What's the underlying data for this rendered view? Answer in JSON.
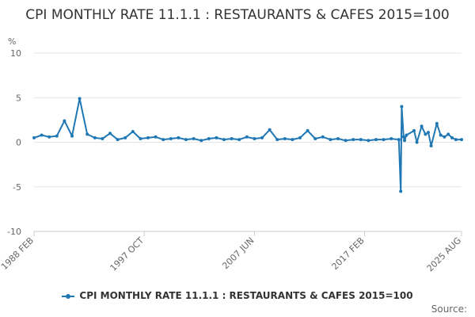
{
  "chart_data": {
    "type": "line",
    "title": "CPI MONTHLY RATE 11.1.1 : RESTAURANTS & CAFES 2015=100",
    "ylabel": "%",
    "ylim": [
      -10,
      10
    ],
    "yticks": [
      10,
      5,
      0,
      -5,
      -10
    ],
    "xlabels": [
      "1988 FEB",
      "1997 OCT",
      "2007 JUN",
      "2017 FEB",
      "2025 AUG"
    ],
    "grid": true,
    "legend_position": "bottom",
    "series_color": "#1f77b4",
    "series": [
      {
        "name": "CPI MONTHLY RATE 11.1.1 : RESTAURANTS & CAFES 2015=100",
        "x": [
          "1988 FEB",
          "1988 OCT",
          "1989 JUN",
          "1990 FEB",
          "1990 OCT",
          "1991 JUN",
          "1992 FEB",
          "1992 OCT",
          "1993 JUN",
          "1994 FEB",
          "1994 OCT",
          "1995 JUN",
          "1996 FEB",
          "1996 OCT",
          "1997 JUN",
          "1998 FEB",
          "1998 OCT",
          "1999 JUN",
          "2000 FEB",
          "2000 OCT",
          "2001 JUN",
          "2002 FEB",
          "2002 OCT",
          "2003 JUN",
          "2004 FEB",
          "2004 OCT",
          "2005 JUN",
          "2006 FEB",
          "2006 OCT",
          "2007 JUN",
          "2008 FEB",
          "2008 OCT",
          "2009 JUN",
          "2010 FEB",
          "2010 OCT",
          "2011 JUN",
          "2012 FEB",
          "2012 OCT",
          "2013 JUN",
          "2014 FEB",
          "2014 OCT",
          "2015 JUN",
          "2016 FEB",
          "2016 OCT",
          "2017 JUN",
          "2018 FEB",
          "2018 OCT",
          "2019 JUN",
          "2020 FEB",
          "2020 APR",
          "2020 MAY",
          "2020 JUL",
          "2020 AUG",
          "2020 OCT",
          "2021 JUN",
          "2021 SEP",
          "2022 FEB",
          "2022 JUN",
          "2022 SEP",
          "2022 DEC",
          "2023 JUN",
          "2023 OCT",
          "2024 FEB",
          "2024 JUN",
          "2024 OCT",
          "2025 FEB",
          "2025 AUG"
        ],
        "values": [
          0.5,
          0.8,
          0.6,
          0.7,
          2.4,
          0.7,
          4.9,
          0.9,
          0.5,
          0.4,
          1.0,
          0.3,
          0.5,
          1.2,
          0.4,
          0.5,
          0.6,
          0.3,
          0.4,
          0.5,
          0.3,
          0.4,
          0.2,
          0.4,
          0.5,
          0.3,
          0.4,
          0.3,
          0.6,
          0.4,
          0.5,
          1.4,
          0.3,
          0.4,
          0.3,
          0.5,
          1.3,
          0.4,
          0.6,
          0.3,
          0.4,
          0.2,
          0.3,
          0.3,
          0.2,
          0.3,
          0.3,
          0.4,
          0.3,
          -5.5,
          4.0,
          0.6,
          0.2,
          0.8,
          1.3,
          0.0,
          1.8,
          0.9,
          1.1,
          -0.4,
          2.1,
          0.8,
          0.6,
          0.9,
          0.5,
          0.3,
          0.3
        ]
      }
    ]
  },
  "legend": {
    "label": "CPI MONTHLY RATE 11.1.1 : RESTAURANTS & CAFES 2015=100"
  },
  "credit": {
    "label": "Source:"
  }
}
